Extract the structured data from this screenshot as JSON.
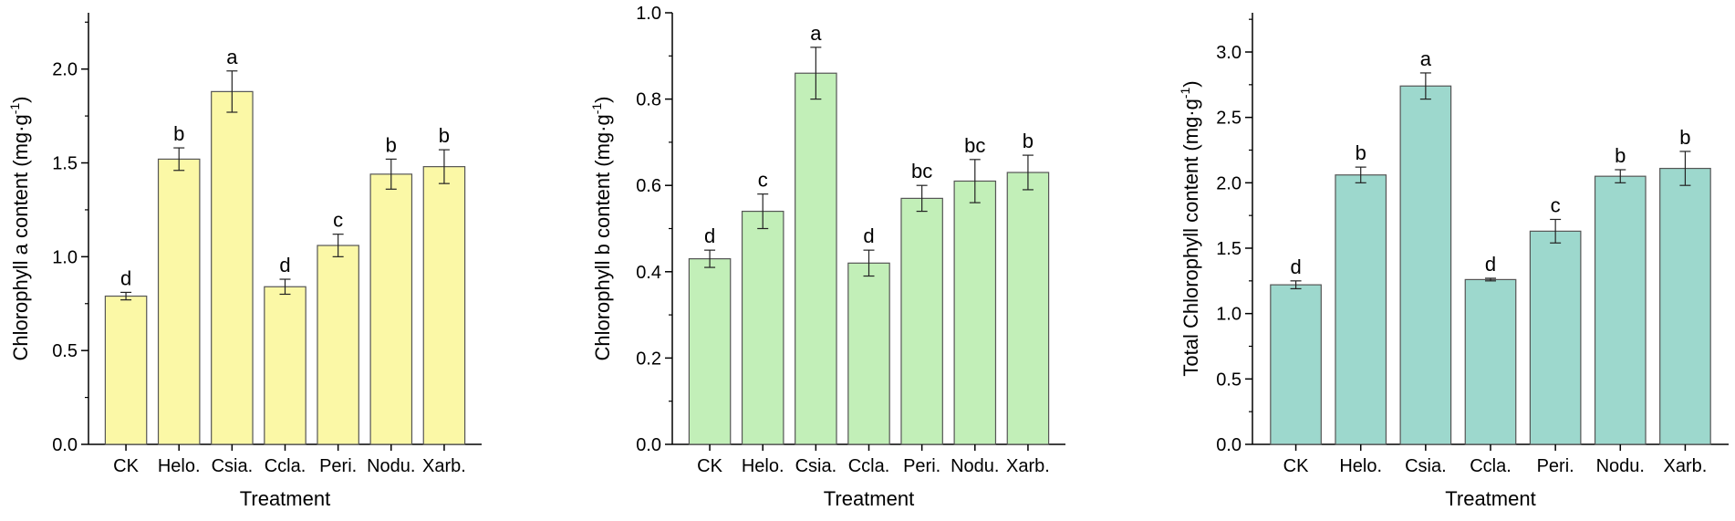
{
  "chart_data": [
    {
      "type": "bar",
      "categories": [
        "CK",
        "Helo.",
        "Csia.",
        "Ccla.",
        "Peri.",
        "Nodu.",
        "Xarb."
      ],
      "values": [
        0.79,
        1.52,
        1.88,
        0.84,
        1.06,
        1.44,
        1.48
      ],
      "errors": [
        0.02,
        0.06,
        0.11,
        0.04,
        0.06,
        0.08,
        0.09
      ],
      "significance": [
        "d",
        "b",
        "a",
        "d",
        "c",
        "b",
        "b"
      ],
      "xlabel": "Treatment",
      "ylabel_main": "Chlorophyll a content (mg·g",
      "ylabel_sup": "-1",
      "ylabel_end": ")",
      "ylim": [
        0,
        2.3
      ],
      "yticks": [
        "0.0",
        "0.5",
        "1.0",
        "1.5",
        "2.0"
      ],
      "ytick_values": [
        0,
        0.5,
        1.0,
        1.5,
        2.0
      ],
      "bar_color": "#fbf8a6",
      "grid": false
    },
    {
      "type": "bar",
      "categories": [
        "CK",
        "Helo.",
        "Csia.",
        "Ccla.",
        "Peri.",
        "Nodu.",
        "Xarb."
      ],
      "values": [
        0.43,
        0.54,
        0.86,
        0.42,
        0.57,
        0.61,
        0.63
      ],
      "errors": [
        0.02,
        0.04,
        0.06,
        0.03,
        0.03,
        0.05,
        0.04
      ],
      "significance": [
        "d",
        "c",
        "a",
        "d",
        "bc",
        "bc",
        "b"
      ],
      "xlabel": "Treatment",
      "ylabel_main": "Chlorophyll b content (mg·g",
      "ylabel_sup": "-1",
      "ylabel_end": ")",
      "ylim": [
        0,
        1.0
      ],
      "yticks": [
        "0.0",
        "0.2",
        "0.4",
        "0.6",
        "0.8",
        "1.0"
      ],
      "ytick_values": [
        0,
        0.2,
        0.4,
        0.6,
        0.8,
        1.0
      ],
      "bar_color": "#c2efb8",
      "grid": false
    },
    {
      "type": "bar",
      "categories": [
        "CK",
        "Helo.",
        "Csia.",
        "Ccla.",
        "Peri.",
        "Nodu.",
        "Xarb."
      ],
      "values": [
        1.22,
        2.06,
        2.74,
        1.26,
        1.63,
        2.05,
        2.11
      ],
      "errors": [
        0.03,
        0.06,
        0.1,
        0.01,
        0.09,
        0.05,
        0.13
      ],
      "significance": [
        "d",
        "b",
        "a",
        "d",
        "c",
        "b",
        "b"
      ],
      "xlabel": "Treatment",
      "ylabel_main": "Total Chlorophyll  content (mg·g",
      "ylabel_sup": "-1",
      "ylabel_end": ")",
      "ylim": [
        0,
        3.3
      ],
      "yticks": [
        "0.0",
        "0.5",
        "1.0",
        "1.5",
        "2.0",
        "2.5",
        "3.0"
      ],
      "ytick_values": [
        0,
        0.5,
        1.0,
        1.5,
        2.0,
        2.5,
        3.0
      ],
      "bar_color": "#9dd8cd",
      "grid": false
    }
  ]
}
